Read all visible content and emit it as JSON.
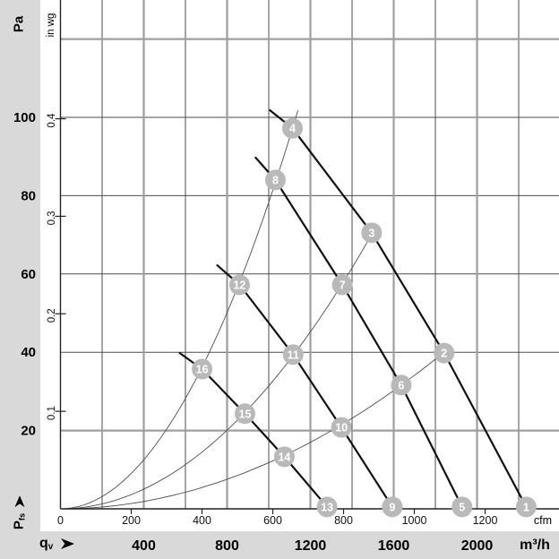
{
  "labels": {
    "y_unit_primary": "Pa",
    "y_unit_secondary": "in wg",
    "y_axis_symbol": "P",
    "y_axis_symbol_sub": "fs",
    "x_axis_symbol": "q",
    "x_axis_symbol_sub": "v",
    "x_unit_primary": "m³/h",
    "x_unit_secondary": "cfm"
  },
  "style": {
    "panel_gray": "#d9d9d9",
    "plot_white": "#ffffff",
    "grid_minor_color": "#4d4d4d",
    "grid_major_color": "#9e9e9e",
    "axis_color": "#222222",
    "fan_curve_color": "#111111",
    "system_curve_color": "#4d4d4d",
    "marker_fill": "#b9b9b9",
    "marker_text_color": "#ffffff"
  },
  "chart_data": {
    "type": "line",
    "x_axis": {
      "unit_primary": "m³/h",
      "unit_secondary": "cfm",
      "ticks_m3h": [
        400,
        800,
        1200,
        1600,
        2000
      ],
      "minor_gridlines_m3h": [
        200,
        600,
        1000,
        1400,
        1800,
        2200
      ],
      "ticks_cfm": [
        0,
        200,
        400,
        600,
        800,
        1000,
        1200
      ],
      "m3h_per_cfm": 1.699,
      "range_m3h": [
        0,
        2395
      ]
    },
    "y_axis": {
      "unit_primary": "Pa",
      "unit_secondary": "in wg",
      "ticks_pa": [
        20,
        40,
        60,
        80,
        100
      ],
      "gridlines_pa_minor": [
        40,
        60,
        80,
        100
      ],
      "gridlines_pa_major": [
        20,
        120
      ],
      "ticks_inwg": [
        0.1,
        0.2,
        0.3,
        0.4
      ],
      "pa_per_inwg": 249.1,
      "range_pa": [
        0,
        130
      ]
    },
    "fan_curves": [
      {
        "id": "curve-1",
        "markers_on_curve": [
          "4",
          "3",
          "2",
          "1"
        ],
        "points_m3h_pa": [
          [
            1006,
            101.8
          ],
          [
            1114,
            97.2
          ],
          [
            1494,
            70.5
          ],
          [
            1842,
            39.8
          ],
          [
            2236,
            0.5
          ]
        ]
      },
      {
        "id": "curve-2",
        "markers_on_curve": [
          "8",
          "7",
          "6",
          "5"
        ],
        "points_m3h_pa": [
          [
            937,
            89.7
          ],
          [
            1032,
            84.0
          ],
          [
            1353,
            57.2
          ],
          [
            1636,
            31.6
          ],
          [
            1928,
            0.5
          ]
        ]
      },
      {
        "id": "curve-3",
        "markers_on_curve": [
          "12",
          "11",
          "10",
          "9"
        ],
        "points_m3h_pa": [
          [
            753,
            62.2
          ],
          [
            860,
            57.2
          ],
          [
            1117,
            39.4
          ],
          [
            1349,
            20.8
          ],
          [
            1593,
            0.5
          ]
        ]
      },
      {
        "id": "curve-4",
        "markers_on_curve": [
          "16",
          "15",
          "14",
          "13"
        ],
        "points_m3h_pa": [
          [
            573,
            39.8
          ],
          [
            680,
            35.7
          ],
          [
            886,
            24.3
          ],
          [
            1075,
            13.3
          ],
          [
            1280,
            0.5
          ]
        ]
      }
    ],
    "system_curves": [
      {
        "id": "system-curve-1",
        "k_pa_per_m3h2": 7.83e-05,
        "q_max_m3h": 1140
      },
      {
        "id": "system-curve-2",
        "k_pa_per_m3h2": 3.14e-05,
        "q_max_m3h": 1500
      },
      {
        "id": "system-curve-3",
        "k_pa_per_m3h2": 1.18e-05,
        "q_max_m3h": 1855
      }
    ],
    "markers": [
      {
        "label": "1",
        "q_m3h": 2236,
        "pa": 0.5
      },
      {
        "label": "2",
        "q_m3h": 1842,
        "pa": 39.8
      },
      {
        "label": "3",
        "q_m3h": 1494,
        "pa": 70.5
      },
      {
        "label": "4",
        "q_m3h": 1114,
        "pa": 97.2
      },
      {
        "label": "5",
        "q_m3h": 1928,
        "pa": 0.5
      },
      {
        "label": "6",
        "q_m3h": 1636,
        "pa": 31.6
      },
      {
        "label": "7",
        "q_m3h": 1353,
        "pa": 57.2
      },
      {
        "label": "8",
        "q_m3h": 1032,
        "pa": 84.0
      },
      {
        "label": "9",
        "q_m3h": 1593,
        "pa": 0.5
      },
      {
        "label": "10",
        "q_m3h": 1349,
        "pa": 20.8
      },
      {
        "label": "11",
        "q_m3h": 1117,
        "pa": 39.4
      },
      {
        "label": "12",
        "q_m3h": 860,
        "pa": 57.2
      },
      {
        "label": "13",
        "q_m3h": 1280,
        "pa": 0.5
      },
      {
        "label": "14",
        "q_m3h": 1075,
        "pa": 13.3
      },
      {
        "label": "15",
        "q_m3h": 886,
        "pa": 24.3
      },
      {
        "label": "16",
        "q_m3h": 680,
        "pa": 35.7
      }
    ]
  }
}
